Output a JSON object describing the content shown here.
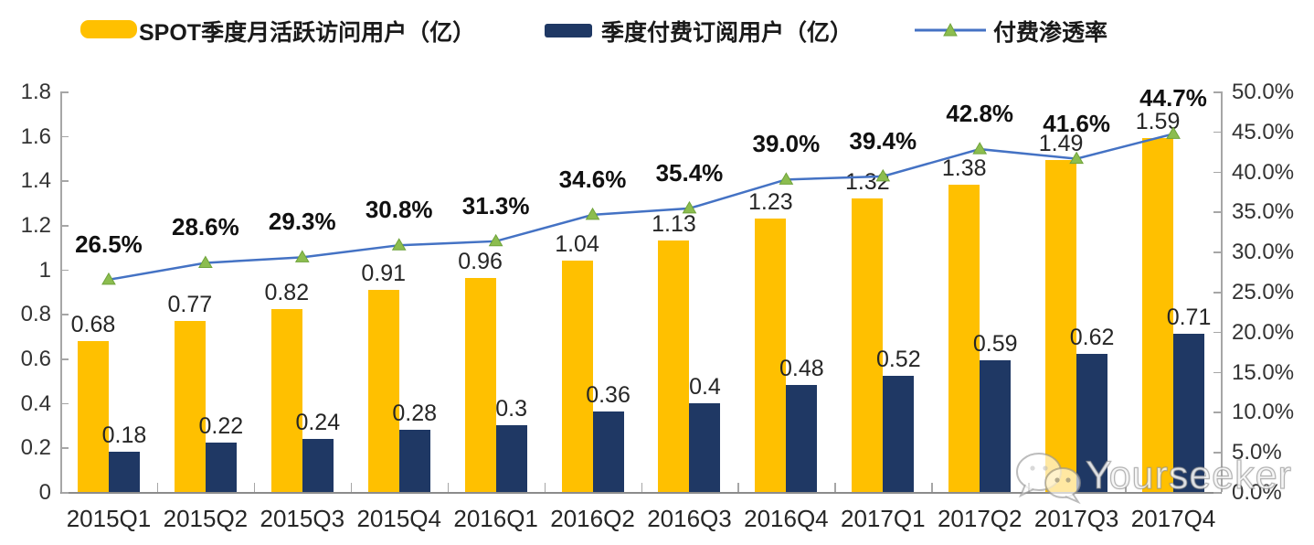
{
  "legend": {
    "mau_label": "SPOT季度月活跃访问用户（亿）",
    "subs_label": "季度付费订阅用户（亿）",
    "penetration_label": "付费渗透率"
  },
  "colors": {
    "mau_bar": "#FFC000",
    "subs_bar": "#1F3864",
    "line": "#4472C4",
    "marker_fill": "#8CBD4F",
    "marker_stroke": "#6FA33A",
    "axis": "#a6a6a6"
  },
  "watermark": {
    "text": "Yourseeker",
    "icon": "wechat-icon"
  },
  "chart_data": {
    "type": "bar",
    "subtype": "grouped bars with secondary-axis line",
    "categories": [
      "2015Q1",
      "2015Q2",
      "2015Q3",
      "2015Q4",
      "2016Q1",
      "2016Q2",
      "2016Q3",
      "2016Q4",
      "2017Q1",
      "2017Q2",
      "2017Q3",
      "2017Q4"
    ],
    "series": [
      {
        "name": "SPOT季度月活跃访问用户（亿）",
        "type": "bar",
        "axis": "left",
        "values": [
          0.68,
          0.77,
          0.82,
          0.91,
          0.96,
          1.04,
          1.13,
          1.23,
          1.32,
          1.38,
          1.49,
          1.59
        ],
        "labels": [
          "0.68",
          "0.77",
          "0.82",
          "0.91",
          "0.96",
          "1.04",
          "1.13",
          "1.23",
          "1.32",
          "1.38",
          "1.49",
          "1.59"
        ]
      },
      {
        "name": "季度付费订阅用户（亿）",
        "type": "bar",
        "axis": "left",
        "values": [
          0.18,
          0.22,
          0.24,
          0.28,
          0.3,
          0.36,
          0.4,
          0.48,
          0.52,
          0.59,
          0.62,
          0.71
        ],
        "labels": [
          "0.18",
          "0.22",
          "0.24",
          "0.28",
          "0.3",
          "0.36",
          "0.4",
          "0.48",
          "0.52",
          "0.59",
          "0.62",
          "0.71"
        ]
      },
      {
        "name": "付费渗透率",
        "type": "line",
        "axis": "right",
        "values": [
          26.5,
          28.6,
          29.3,
          30.8,
          31.3,
          34.6,
          35.4,
          39.0,
          39.4,
          42.8,
          41.6,
          44.7
        ],
        "labels": [
          "26.5%",
          "28.6%",
          "29.3%",
          "30.8%",
          "31.3%",
          "34.6%",
          "35.4%",
          "39.0%",
          "39.4%",
          "42.8%",
          "41.6%",
          "44.7%"
        ]
      }
    ],
    "left_axis": {
      "min": 0,
      "max": 1.8,
      "step": 0.2,
      "tick_labels": [
        "0",
        "0.2",
        "0.4",
        "0.6",
        "0.8",
        "1",
        "1.2",
        "1.4",
        "1.6",
        "1.8"
      ]
    },
    "right_axis": {
      "min": 0,
      "max": 50,
      "step": 5,
      "tick_labels": [
        "0.0%",
        "5.0%",
        "10.0%",
        "15.0%",
        "20.0%",
        "25.0%",
        "30.0%",
        "35.0%",
        "40.0%",
        "45.0%",
        "50.0%"
      ]
    },
    "grid": false,
    "legend_position": "top",
    "title": ""
  }
}
